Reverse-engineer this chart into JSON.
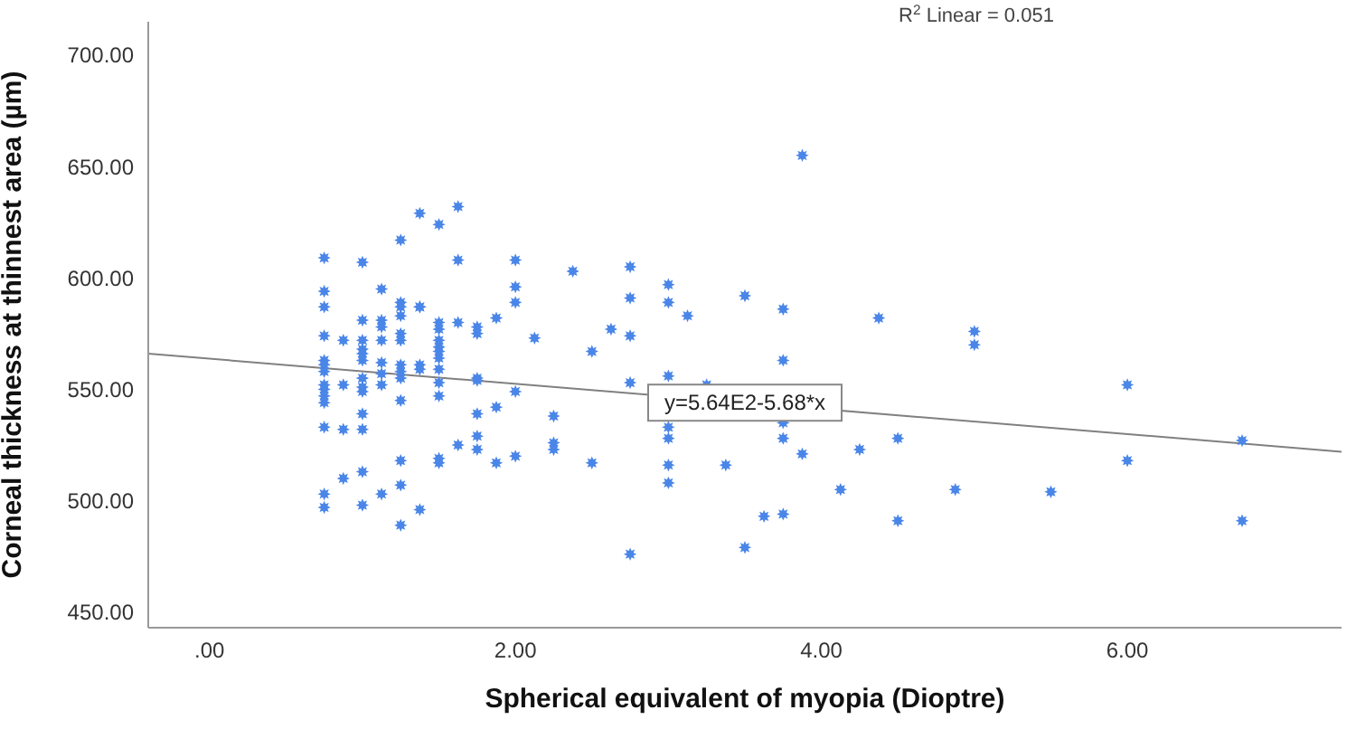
{
  "chart_data": {
    "type": "scatter",
    "xlabel": "Spherical equivalent of myopia (Dioptre)",
    "ylabel": "Corneal thickness at thinnest area (µm)",
    "xlim": [
      -0.4,
      7.4
    ],
    "xticks": [
      {
        "value": 0,
        "label": ".00"
      },
      {
        "value": 2,
        "label": "2.00"
      },
      {
        "value": 4,
        "label": "4.00"
      },
      {
        "value": 6,
        "label": "6.00"
      }
    ],
    "ylim": [
      443,
      715
    ],
    "yticks": [
      {
        "value": 450,
        "label": "450.00"
      },
      {
        "value": 500,
        "label": "500.00"
      },
      {
        "value": 550,
        "label": "550.00"
      },
      {
        "value": 600,
        "label": "600.00"
      },
      {
        "value": 650,
        "label": "650.00"
      },
      {
        "value": 700,
        "label": "700.00"
      }
    ],
    "grid": false,
    "legend": false,
    "annotations": [
      "R$^{2}$ Linear = 0.051",
      {
        "text": "y=5.64E2-5.68*x",
        "x": 3.5,
        "y": 544
      }
    ],
    "series": [
      {
        "marker": "star",
        "color": "#4a86e8",
        "x": [
          0.75,
          0.75,
          0.75,
          0.75,
          0.75,
          0.75,
          0.75,
          0.75,
          0.75,
          0.75,
          0.75,
          0.75,
          0.75,
          0.75,
          0.875,
          0.875,
          0.875,
          0.875,
          1,
          1,
          1,
          1,
          1,
          1,
          1,
          1,
          1,
          1,
          1,
          1,
          1,
          1.125,
          1.125,
          1.125,
          1.125,
          1.125,
          1.125,
          1.125,
          1.125,
          1.25,
          1.25,
          1.25,
          1.25,
          1.25,
          1.25,
          1.25,
          1.25,
          1.25,
          1.25,
          1.25,
          1.25,
          1.25,
          1.375,
          1.375,
          1.375,
          1.375,
          1.375,
          1.375,
          1.5,
          1.5,
          1.5,
          1.5,
          1.5,
          1.5,
          1.5,
          1.5,
          1.5,
          1.5,
          1.5,
          1.5,
          1.625,
          1.625,
          1.625,
          1.625,
          1.75,
          1.75,
          1.75,
          1.75,
          1.75,
          1.75,
          1.75,
          1.875,
          1.875,
          1.875,
          2,
          2,
          2,
          2,
          2,
          2.125,
          2.25,
          2.25,
          2.25,
          2.375,
          2.5,
          2.5,
          2.625,
          2.75,
          2.75,
          2.75,
          2.75,
          2.75,
          3,
          3,
          3,
          3,
          3,
          3,
          3,
          3.125,
          3.25,
          3.375,
          3.5,
          3.5,
          3.625,
          3.75,
          3.75,
          3.75,
          3.75,
          3.75,
          3.875,
          3.875,
          4.125,
          4.25,
          4.375,
          4.5,
          4.5,
          4.875,
          5,
          5,
          5.5,
          6,
          6,
          6.75,
          6.75
        ],
        "values": [
          609,
          594,
          587,
          574,
          563,
          561,
          558,
          552,
          550,
          547,
          544,
          533,
          503,
          497,
          572,
          552,
          532,
          510,
          607,
          581,
          572,
          568,
          566,
          563,
          555,
          551,
          549,
          539,
          532,
          513,
          498,
          595,
          581,
          578,
          572,
          562,
          557,
          552,
          503,
          617,
          589,
          587,
          583,
          575,
          572,
          561,
          558,
          555,
          545,
          518,
          507,
          489,
          629,
          587,
          587,
          561,
          559,
          496,
          624,
          580,
          577,
          572,
          569,
          567,
          564,
          559,
          553,
          547,
          519,
          517,
          632,
          608,
          580,
          525,
          578,
          575,
          555,
          554,
          539,
          529,
          523,
          582,
          542,
          517,
          608,
          596,
          589,
          549,
          520,
          573,
          538,
          526,
          523,
          603,
          567,
          517,
          577,
          605,
          591,
          574,
          553,
          476,
          597,
          589,
          556,
          533,
          528,
          516,
          508,
          583,
          552,
          516,
          592,
          479,
          493,
          586,
          563,
          535,
          528,
          494,
          655,
          521,
          505,
          523,
          582,
          528,
          491,
          505,
          576,
          570,
          504,
          552,
          518,
          527,
          491
        ]
      },
      {
        "type": "line",
        "marker": "none",
        "color": "#808080",
        "x": [
          -0.4,
          7.4
        ],
        "values": [
          566,
          522
        ]
      }
    ]
  }
}
